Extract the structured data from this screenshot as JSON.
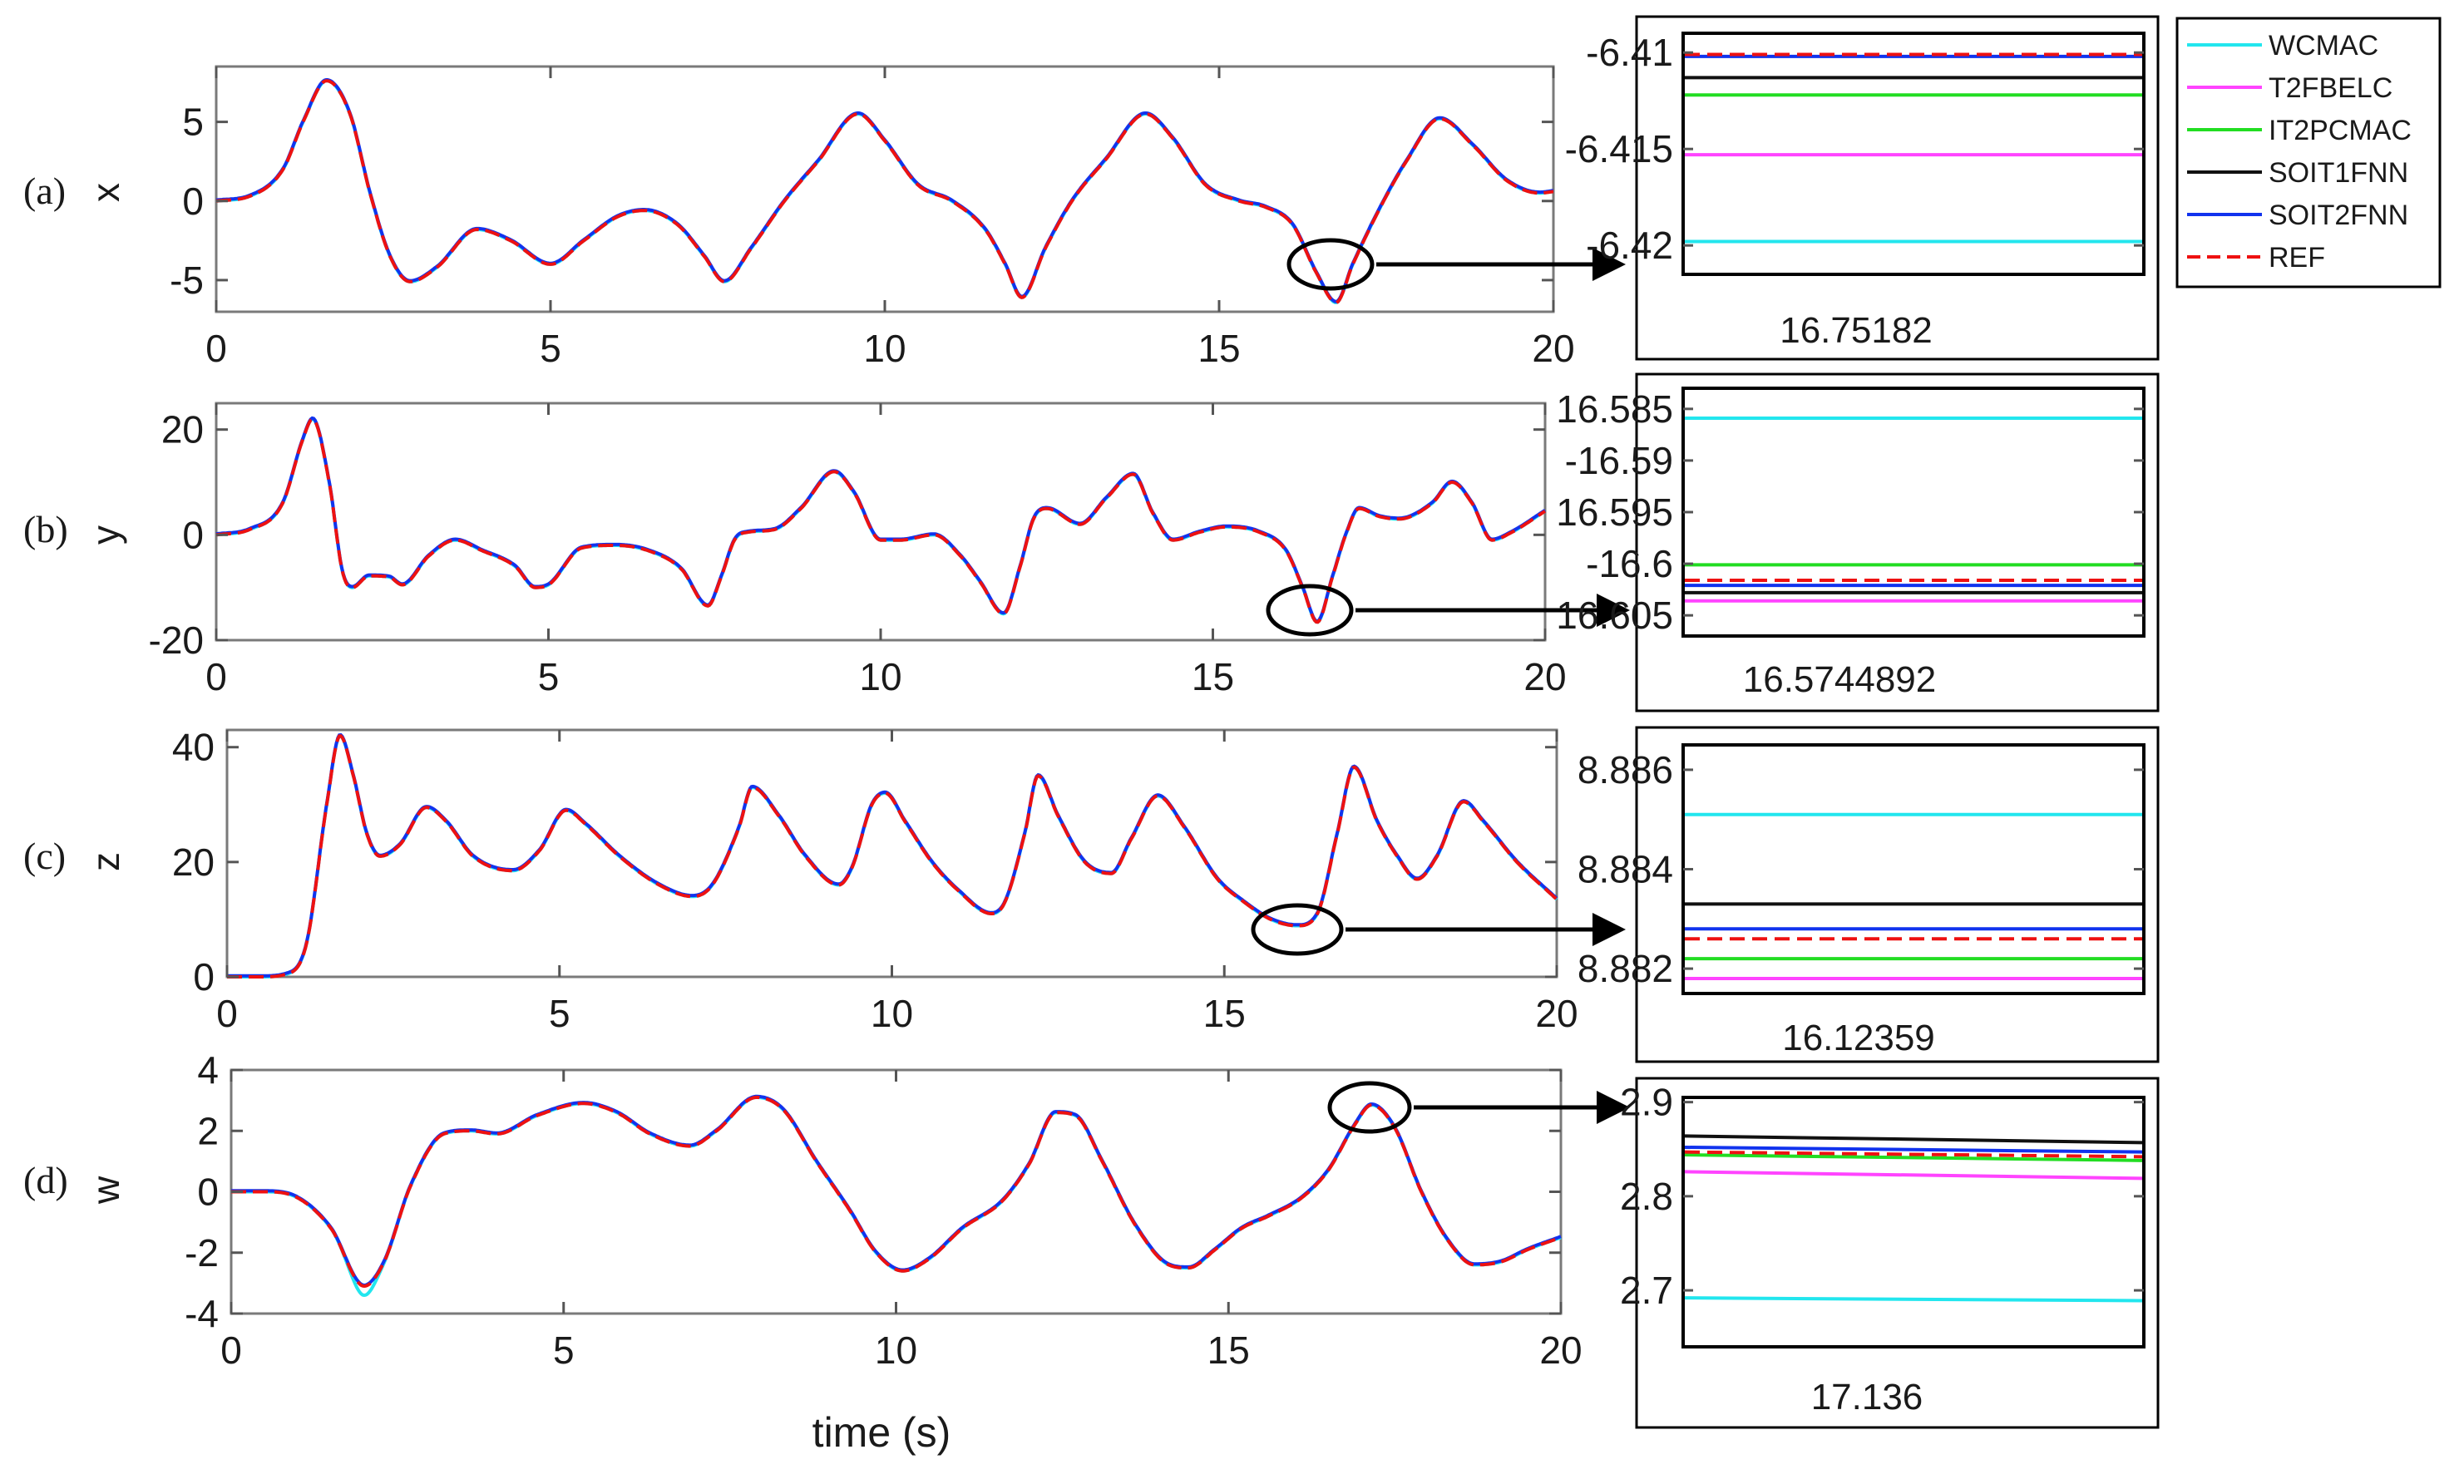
{
  "chart_data": [
    {
      "type": "line",
      "panel_label": "(a)",
      "ylabel": "x",
      "xlabel": "",
      "xlim": [
        0,
        20
      ],
      "ylim": [
        -7,
        8.5
      ],
      "x_ticks": [
        "0",
        "5",
        "10",
        "15",
        "20"
      ],
      "y_ticks": [
        {
          "v": 5,
          "label": "5"
        },
        {
          "v": 0,
          "label": "0"
        },
        {
          "v": -5,
          "label": "-5"
        }
      ],
      "knots": [
        [
          0,
          0
        ],
        [
          0.5,
          0.3
        ],
        [
          1.0,
          2.0
        ],
        [
          1.3,
          5.0
        ],
        [
          1.65,
          7.6
        ],
        [
          2.0,
          5.5
        ],
        [
          2.3,
          0.5
        ],
        [
          2.6,
          -3.5
        ],
        [
          2.9,
          -5.1
        ],
        [
          3.3,
          -4.2
        ],
        [
          3.9,
          -1.8
        ],
        [
          4.4,
          -2.5
        ],
        [
          5.0,
          -4.0
        ],
        [
          5.5,
          -2.5
        ],
        [
          6.0,
          -1.0
        ],
        [
          6.4,
          -0.6
        ],
        [
          6.9,
          -1.5
        ],
        [
          7.3,
          -3.5
        ],
        [
          7.6,
          -5.1
        ],
        [
          8.0,
          -3.0
        ],
        [
          8.5,
          0.0
        ],
        [
          9.0,
          2.5
        ],
        [
          9.6,
          5.5
        ],
        [
          10.0,
          3.8
        ],
        [
          10.5,
          1.0
        ],
        [
          11.0,
          0.0
        ],
        [
          11.5,
          -1.8
        ],
        [
          11.8,
          -4.0
        ],
        [
          12.05,
          -6.1
        ],
        [
          12.4,
          -3.0
        ],
        [
          12.8,
          0.0
        ],
        [
          13.3,
          2.6
        ],
        [
          13.9,
          5.5
        ],
        [
          14.3,
          4.0
        ],
        [
          14.8,
          1.0
        ],
        [
          15.3,
          0.0
        ],
        [
          15.7,
          -0.4
        ],
        [
          16.1,
          -1.5
        ],
        [
          16.45,
          -4.5
        ],
        [
          16.75,
          -6.42
        ],
        [
          17.0,
          -4.0
        ],
        [
          17.4,
          -0.5
        ],
        [
          17.8,
          2.5
        ],
        [
          18.3,
          5.2
        ],
        [
          18.8,
          3.5
        ],
        [
          19.3,
          1.3
        ],
        [
          19.8,
          0.5
        ],
        [
          20,
          0.6
        ]
      ],
      "legend": [
        "WCMAC",
        "T2FBELC",
        "IT2PCMAC",
        "SOIT1FNN",
        "SOIT2FNN",
        "REF"
      ],
      "zoom": {
        "x_label": "16.75182",
        "ylim": [
          -6.4215,
          -6.409
        ],
        "y_ticks": [
          {
            "v": -6.41,
            "label": "-6.41"
          },
          {
            "v": -6.415,
            "label": "-6.415"
          },
          {
            "v": -6.42,
            "label": "-6.42"
          }
        ],
        "values": {
          "WCMAC": -6.4198,
          "T2FBELC": -6.4153,
          "IT2PCMAC": -6.4122,
          "SOIT1FNN": -6.4113,
          "SOIT2FNN": -6.4102,
          "REF": -6.4101
        }
      }
    },
    {
      "type": "line",
      "panel_label": "(b)",
      "ylabel": "y",
      "xlabel": "",
      "xlim": [
        0,
        20
      ],
      "ylim": [
        -20,
        25
      ],
      "x_ticks": [
        "0",
        "5",
        "10",
        "15",
        "20"
      ],
      "y_ticks": [
        {
          "v": 20,
          "label": "20"
        },
        {
          "v": 0,
          "label": "0"
        },
        {
          "v": -20,
          "label": "-20"
        }
      ],
      "knots": [
        [
          0,
          0
        ],
        [
          0.5,
          1.0
        ],
        [
          1.0,
          6.0
        ],
        [
          1.3,
          18.0
        ],
        [
          1.45,
          22.0
        ],
        [
          1.7,
          10.0
        ],
        [
          1.9,
          -7.0
        ],
        [
          2.05,
          -10.0
        ],
        [
          2.3,
          -7.8
        ],
        [
          2.6,
          -8.0
        ],
        [
          2.8,
          -9.5
        ],
        [
          3.2,
          -4.0
        ],
        [
          3.6,
          -1.0
        ],
        [
          4.0,
          -3.0
        ],
        [
          4.5,
          -6.0
        ],
        [
          4.8,
          -10.0
        ],
        [
          5.0,
          -9.5
        ],
        [
          5.5,
          -2.5
        ],
        [
          6.0,
          -2.0
        ],
        [
          6.5,
          -3.0
        ],
        [
          7.0,
          -6.5
        ],
        [
          7.4,
          -13.5
        ],
        [
          7.6,
          -8.0
        ],
        [
          7.8,
          -1.0
        ],
        [
          8.0,
          0.5
        ],
        [
          8.4,
          1.0
        ],
        [
          8.8,
          5.0
        ],
        [
          9.3,
          12.0
        ],
        [
          9.6,
          8.0
        ],
        [
          10.0,
          -1.0
        ],
        [
          10.3,
          -1.0
        ],
        [
          10.8,
          0.0
        ],
        [
          11.2,
          -4.0
        ],
        [
          11.5,
          -9.0
        ],
        [
          11.85,
          -15.0
        ],
        [
          12.1,
          -6.0
        ],
        [
          12.3,
          3.0
        ],
        [
          12.5,
          5.0
        ],
        [
          13.0,
          2.0
        ],
        [
          13.4,
          7.0
        ],
        [
          13.8,
          11.5
        ],
        [
          14.1,
          4.0
        ],
        [
          14.4,
          -1.0
        ],
        [
          14.8,
          0.5
        ],
        [
          15.2,
          1.5
        ],
        [
          15.7,
          0.5
        ],
        [
          16.1,
          -3.0
        ],
        [
          16.35,
          -10.0
        ],
        [
          16.57,
          -16.6
        ],
        [
          16.8,
          -8.0
        ],
        [
          17.0,
          0.0
        ],
        [
          17.2,
          5.0
        ],
        [
          17.5,
          3.5
        ],
        [
          17.8,
          3.0
        ],
        [
          18.3,
          6.0
        ],
        [
          18.6,
          10.0
        ],
        [
          18.9,
          6.0
        ],
        [
          19.2,
          -1.0
        ],
        [
          19.5,
          0.5
        ],
        [
          20,
          4.5
        ]
      ],
      "zoom": {
        "x_label": "16.5744892",
        "y_tick_format": "alternating leading minus",
        "ylim": [
          -16.607,
          -16.583
        ],
        "y_ticks": [
          {
            "v": -16.585,
            "label": "16.585"
          },
          {
            "v": -16.59,
            "label": "-16.59"
          },
          {
            "v": -16.595,
            "label": "16.595"
          },
          {
            "v": -16.6,
            "label": "-16.6"
          },
          {
            "v": -16.605,
            "label": "16.605"
          }
        ],
        "values": {
          "WCMAC": -16.5859,
          "T2FBELC": -16.6036,
          "IT2PCMAC": -16.6001,
          "SOIT1FNN": -16.6028,
          "SOIT2FNN": -16.6021,
          "REF": -16.6016
        }
      }
    },
    {
      "type": "line",
      "panel_label": "(c)",
      "ylabel": "z",
      "xlabel": "",
      "xlim": [
        0,
        20
      ],
      "ylim": [
        0,
        43
      ],
      "x_ticks": [
        "0",
        "5",
        "10",
        "15",
        "20"
      ],
      "y_ticks": [
        {
          "v": 40,
          "label": "40"
        },
        {
          "v": 20,
          "label": "20"
        },
        {
          "v": 0,
          "label": "0"
        }
      ],
      "knots": [
        [
          0,
          0
        ],
        [
          0.5,
          0
        ],
        [
          0.9,
          0.5
        ],
        [
          1.2,
          6.0
        ],
        [
          1.5,
          30.0
        ],
        [
          1.7,
          42.0
        ],
        [
          1.9,
          35.0
        ],
        [
          2.1,
          25.0
        ],
        [
          2.3,
          21.0
        ],
        [
          2.6,
          23.0
        ],
        [
          3.0,
          29.5
        ],
        [
          3.3,
          27.0
        ],
        [
          3.7,
          21.0
        ],
        [
          4.3,
          18.5
        ],
        [
          4.7,
          22.0
        ],
        [
          5.1,
          29.0
        ],
        [
          5.4,
          26.5
        ],
        [
          5.9,
          21.0
        ],
        [
          6.5,
          16.0
        ],
        [
          7.0,
          14.0
        ],
        [
          7.3,
          16.0
        ],
        [
          7.7,
          26.0
        ],
        [
          7.9,
          33.0
        ],
        [
          8.3,
          28.0
        ],
        [
          8.7,
          21.0
        ],
        [
          9.2,
          16.0
        ],
        [
          9.4,
          19.0
        ],
        [
          9.7,
          30.0
        ],
        [
          9.9,
          32.0
        ],
        [
          10.2,
          27.0
        ],
        [
          10.6,
          20.0
        ],
        [
          11.0,
          15.0
        ],
        [
          11.5,
          11.0
        ],
        [
          11.7,
          13.0
        ],
        [
          12.0,
          25.0
        ],
        [
          12.2,
          35.0
        ],
        [
          12.5,
          28.0
        ],
        [
          12.9,
          20.0
        ],
        [
          13.3,
          18.0
        ],
        [
          13.6,
          24.0
        ],
        [
          14.0,
          31.5
        ],
        [
          14.4,
          26.0
        ],
        [
          14.9,
          17.0
        ],
        [
          15.3,
          13.0
        ],
        [
          15.7,
          10.0
        ],
        [
          16.1,
          8.9
        ],
        [
          16.4,
          11.0
        ],
        [
          16.7,
          25.0
        ],
        [
          16.95,
          36.5
        ],
        [
          17.3,
          27.0
        ],
        [
          17.6,
          21.0
        ],
        [
          17.9,
          17.0
        ],
        [
          18.2,
          21.0
        ],
        [
          18.6,
          30.5
        ],
        [
          18.9,
          27.0
        ],
        [
          19.4,
          20.0
        ],
        [
          20,
          13.5
        ]
      ],
      "zoom": {
        "x_label": "16.12359",
        "ylim": [
          8.8815,
          8.8865
        ],
        "y_ticks": [
          {
            "v": 8.886,
            "label": "8.886"
          },
          {
            "v": 8.884,
            "label": "8.884"
          },
          {
            "v": 8.882,
            "label": "8.882"
          }
        ],
        "values": {
          "WCMAC": 8.8851,
          "T2FBELC": 8.8818,
          "IT2PCMAC": 8.8822,
          "SOIT1FNN": 8.8833,
          "SOIT2FNN": 8.8828,
          "REF": 8.8826
        }
      }
    },
    {
      "type": "line",
      "panel_label": "(d)",
      "ylabel": "w",
      "xlabel": "time (s)",
      "xlim": [
        0,
        20
      ],
      "ylim": [
        -4,
        4
      ],
      "x_ticks": [
        "0",
        "5",
        "10",
        "15",
        "20"
      ],
      "y_ticks": [
        {
          "v": 4,
          "label": "4"
        },
        {
          "v": 2,
          "label": "2"
        },
        {
          "v": 0,
          "label": "0"
        },
        {
          "v": -2,
          "label": "-2"
        },
        {
          "v": -4,
          "label": "-4"
        }
      ],
      "knots": [
        [
          0,
          0
        ],
        [
          0.5,
          0.0
        ],
        [
          1.0,
          -0.2
        ],
        [
          1.5,
          -1.2
        ],
        [
          2.0,
          -3.1
        ],
        [
          2.3,
          -2.3
        ],
        [
          2.7,
          0.2
        ],
        [
          3.2,
          1.9
        ],
        [
          3.6,
          2.0
        ],
        [
          4.0,
          1.9
        ],
        [
          4.6,
          2.5
        ],
        [
          5.3,
          2.9
        ],
        [
          5.8,
          2.6
        ],
        [
          6.3,
          1.9
        ],
        [
          6.9,
          1.5
        ],
        [
          7.3,
          2.0
        ],
        [
          7.9,
          3.1
        ],
        [
          8.3,
          2.7
        ],
        [
          8.8,
          1.0
        ],
        [
          9.3,
          -0.6
        ],
        [
          9.7,
          -2.0
        ],
        [
          10.1,
          -2.6
        ],
        [
          10.5,
          -2.2
        ],
        [
          11.0,
          -1.2
        ],
        [
          11.6,
          -0.3
        ],
        [
          12.0,
          0.9
        ],
        [
          12.4,
          2.6
        ],
        [
          12.7,
          2.5
        ],
        [
          13.1,
          1.0
        ],
        [
          13.6,
          -1.1
        ],
        [
          14.1,
          -2.4
        ],
        [
          14.4,
          -2.5
        ],
        [
          14.8,
          -1.9
        ],
        [
          15.2,
          -1.2
        ],
        [
          15.6,
          -0.8
        ],
        [
          16.1,
          -0.2
        ],
        [
          16.5,
          0.7
        ],
        [
          16.9,
          2.2
        ],
        [
          17.15,
          2.85
        ],
        [
          17.5,
          2.1
        ],
        [
          17.9,
          0.0
        ],
        [
          18.3,
          -1.6
        ],
        [
          18.7,
          -2.4
        ],
        [
          19.1,
          -2.3
        ],
        [
          19.5,
          -1.9
        ],
        [
          20,
          -1.5
        ]
      ],
      "wcmac_dip": -3.4,
      "zoom": {
        "x_label": "17.136",
        "ylim": [
          2.64,
          2.905
        ],
        "y_ticks": [
          {
            "v": 2.9,
            "label": "2.9"
          },
          {
            "v": 2.8,
            "label": "2.8"
          },
          {
            "v": 2.7,
            "label": "2.7"
          }
        ],
        "values": {
          "WCMAC": [
            2.692,
            2.689
          ],
          "T2FBELC": [
            2.826,
            2.819
          ],
          "IT2PCMAC": [
            2.844,
            2.838
          ],
          "SOIT1FNN": [
            2.864,
            2.857
          ],
          "SOIT2FNN": [
            2.852,
            2.847
          ],
          "REF": [
            2.847,
            2.842
          ]
        }
      }
    }
  ],
  "series_colors": {
    "WCMAC": "#22e6ee",
    "T2FBELC": "#ff44ff",
    "IT2PCMAC": "#22dd22",
    "SOIT1FNN": "#111111",
    "SOIT2FNN": "#1133ee",
    "REF": "#ee1111"
  }
}
